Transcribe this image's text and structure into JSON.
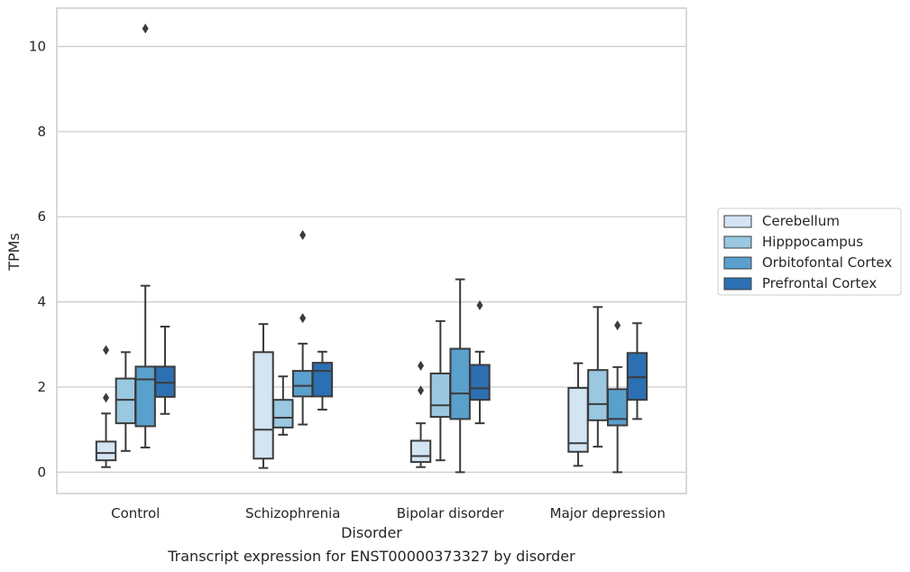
{
  "chart_data": {
    "type": "box",
    "title": "",
    "caption": "Transcript expression for ENST00000373327 by disorder",
    "xlabel": "Disorder",
    "ylabel": "TPMs",
    "ylim": [
      -0.5,
      10.9
    ],
    "yticks": [
      0,
      2,
      4,
      6,
      8,
      10
    ],
    "grid": true,
    "legend_position": "right",
    "categories": [
      "Control",
      "Schizophrenia",
      "Bipolar disorder",
      "Major depression"
    ],
    "series": [
      {
        "name": "Cerebellum",
        "color": "#d3e4f3",
        "boxes": [
          {
            "whisker_low": 0.12,
            "q1": 0.28,
            "median": 0.45,
            "q3": 0.72,
            "whisker_high": 1.38,
            "outliers": [
              1.75,
              2.87
            ]
          },
          {
            "whisker_low": 0.1,
            "q1": 0.32,
            "median": 1.0,
            "q3": 2.82,
            "whisker_high": 3.48,
            "outliers": []
          },
          {
            "whisker_low": 0.12,
            "q1": 0.24,
            "median": 0.38,
            "q3": 0.74,
            "whisker_high": 1.15,
            "outliers": [
              1.92,
              2.5
            ]
          },
          {
            "whisker_low": 0.15,
            "q1": 0.48,
            "median": 0.68,
            "q3": 1.98,
            "whisker_high": 2.56,
            "outliers": []
          }
        ]
      },
      {
        "name": "Hipppocampus",
        "color": "#9ac8e0",
        "boxes": [
          {
            "whisker_low": 0.5,
            "q1": 1.15,
            "median": 1.7,
            "q3": 2.2,
            "whisker_high": 2.82,
            "outliers": []
          },
          {
            "whisker_low": 0.88,
            "q1": 1.05,
            "median": 1.28,
            "q3": 1.7,
            "whisker_high": 2.25,
            "outliers": []
          },
          {
            "whisker_low": 0.28,
            "q1": 1.3,
            "median": 1.57,
            "q3": 2.32,
            "whisker_high": 3.55,
            "outliers": []
          },
          {
            "whisker_low": 0.6,
            "q1": 1.22,
            "median": 1.6,
            "q3": 2.4,
            "whisker_high": 3.88,
            "outliers": []
          }
        ]
      },
      {
        "name": "Orbitofontal Cortex",
        "color": "#5aa0cd",
        "boxes": [
          {
            "whisker_low": 0.58,
            "q1": 1.08,
            "median": 2.18,
            "q3": 2.48,
            "whisker_high": 4.38,
            "outliers": [
              10.42
            ]
          },
          {
            "whisker_low": 1.12,
            "q1": 1.78,
            "median": 2.03,
            "q3": 2.38,
            "whisker_high": 3.02,
            "outliers": [
              3.62,
              5.57
            ]
          },
          {
            "whisker_low": 0.0,
            "q1": 1.25,
            "median": 1.85,
            "q3": 2.9,
            "whisker_high": 4.53,
            "outliers": []
          },
          {
            "whisker_low": 0.0,
            "q1": 1.1,
            "median": 1.25,
            "q3": 1.95,
            "whisker_high": 2.47,
            "outliers": [
              3.45
            ]
          }
        ]
      },
      {
        "name": "Prefrontal Cortex",
        "color": "#2c6fb2",
        "boxes": [
          {
            "whisker_low": 1.37,
            "q1": 1.77,
            "median": 2.1,
            "q3": 2.48,
            "whisker_high": 3.42,
            "outliers": []
          },
          {
            "whisker_low": 1.47,
            "q1": 1.78,
            "median": 2.38,
            "q3": 2.57,
            "whisker_high": 2.83,
            "outliers": []
          },
          {
            "whisker_low": 1.15,
            "q1": 1.7,
            "median": 1.97,
            "q3": 2.52,
            "whisker_high": 2.83,
            "outliers": [
              3.92
            ]
          },
          {
            "whisker_low": 1.25,
            "q1": 1.7,
            "median": 2.23,
            "q3": 2.8,
            "whisker_high": 3.5,
            "outliers": []
          }
        ]
      }
    ]
  }
}
